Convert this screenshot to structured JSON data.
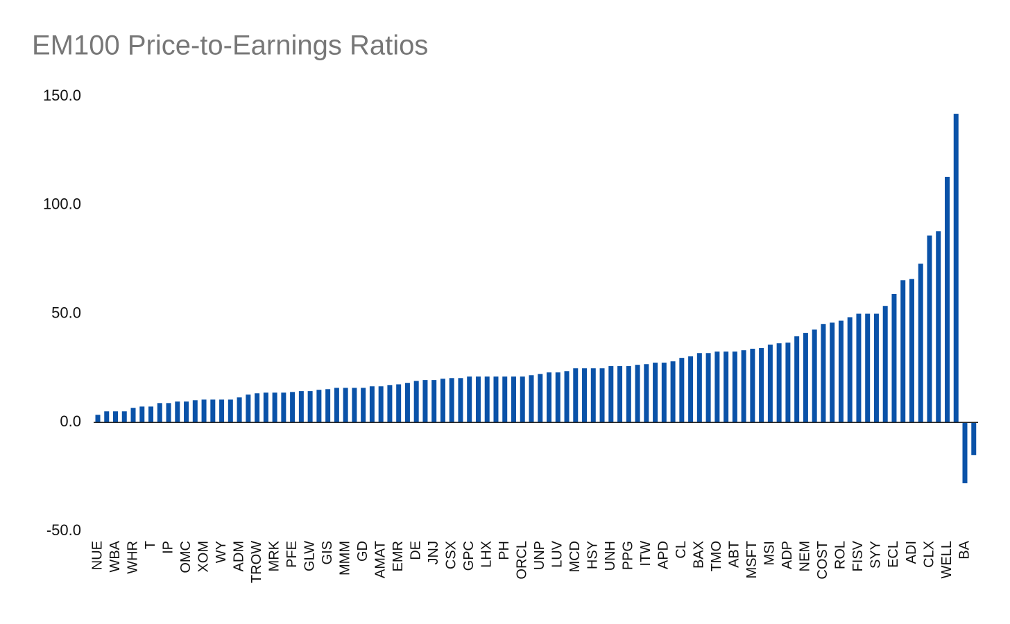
{
  "chart_data": {
    "type": "bar",
    "title": "EM100 Price-to-Earnings Ratios",
    "categories": [
      "NUE",
      null,
      "WBA",
      null,
      "WHR",
      null,
      "T",
      null,
      "IP",
      null,
      "OMC",
      null,
      "XOM",
      null,
      "WY",
      null,
      "ADM",
      null,
      "TROW",
      null,
      "MRK",
      null,
      "PFE",
      null,
      "GLW",
      null,
      "GIS",
      null,
      "MMM",
      null,
      "GD",
      null,
      "AMAT",
      null,
      "EMR",
      null,
      "DE",
      null,
      "JNJ",
      null,
      "CSX",
      null,
      "GPC",
      null,
      "LHX",
      null,
      "PH",
      null,
      "ORCL",
      null,
      "UNP",
      null,
      "LUV",
      null,
      "MCD",
      null,
      "HSY",
      null,
      "UNH",
      null,
      "PPG",
      null,
      "ITW",
      null,
      "APD",
      null,
      "CL",
      null,
      "BAX",
      null,
      "TMO",
      null,
      "ABT",
      null,
      "MSFT",
      null,
      "MSI",
      null,
      "ADP",
      null,
      "NEM",
      null,
      "COST",
      null,
      "ROL",
      null,
      "FISV",
      null,
      "SYY",
      null,
      "ECL",
      null,
      "ADI",
      null,
      "CLX",
      null,
      "WELL",
      null,
      "BA",
      null
    ],
    "values": [
      3.5,
      5.1,
      5.1,
      5.1,
      6.7,
      7.3,
      7.3,
      8.9,
      8.9,
      9.6,
      9.6,
      10.2,
      10.5,
      10.5,
      10.5,
      10.5,
      11.5,
      12.8,
      13.4,
      13.7,
      13.7,
      13.7,
      14.0,
      14.4,
      14.4,
      15.0,
      15.3,
      15.9,
      15.9,
      15.9,
      15.9,
      16.6,
      16.6,
      17.2,
      17.5,
      18.2,
      19.1,
      19.5,
      19.5,
      20.1,
      20.4,
      20.4,
      21.1,
      21.1,
      21.1,
      21.1,
      21.1,
      21.1,
      21.1,
      21.7,
      22.3,
      23.0,
      23.0,
      23.6,
      24.9,
      24.9,
      24.9,
      24.9,
      25.9,
      25.9,
      25.9,
      26.5,
      26.8,
      27.5,
      27.5,
      28.1,
      29.7,
      30.4,
      31.9,
      31.9,
      32.6,
      32.6,
      32.6,
      33.2,
      33.9,
      34.2,
      35.8,
      36.4,
      36.7,
      39.6,
      41.2,
      42.7,
      45.3,
      45.9,
      46.8,
      48.4,
      50,
      50,
      50,
      53.6,
      59.1,
      65.4,
      66,
      73,
      86,
      88,
      113,
      142,
      -28,
      -15
    ],
    "color": "#0a52a8",
    "ylim": [
      -50,
      150
    ],
    "yticks": [
      {
        "value": -50,
        "label": "-50.0"
      },
      {
        "value": 0,
        "label": "0.0"
      },
      {
        "value": 50,
        "label": "50.0"
      },
      {
        "value": 100,
        "label": "100.0"
      },
      {
        "value": 150,
        "label": "150.0"
      }
    ],
    "grid": false
  }
}
